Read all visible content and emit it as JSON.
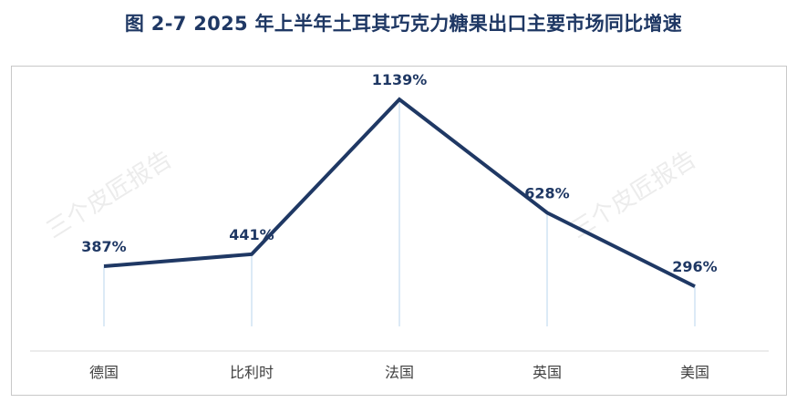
{
  "title": "图  2-7 2025 年上半年土耳其巧克力糖果出口主要市场同比增速",
  "watermark": "三个皮匠报告",
  "colors": {
    "line": "#1f3864",
    "label": "#1f3864",
    "axis_text": "#404040",
    "drop_line": "#9dc3e6",
    "axis": "#d9d9d9"
  },
  "chart_data": {
    "type": "line",
    "categories": [
      "德国",
      "比利时",
      "法国",
      "英国",
      "美国"
    ],
    "values": [
      387,
      441,
      1139,
      628,
      296
    ],
    "value_labels": [
      "387%",
      "441%",
      "1139%",
      "628%",
      "296%"
    ],
    "unit": "%",
    "ylim": [
      0,
      1139
    ],
    "grid": false,
    "legend": "none",
    "title": "",
    "xlabel": "",
    "ylabel": ""
  }
}
